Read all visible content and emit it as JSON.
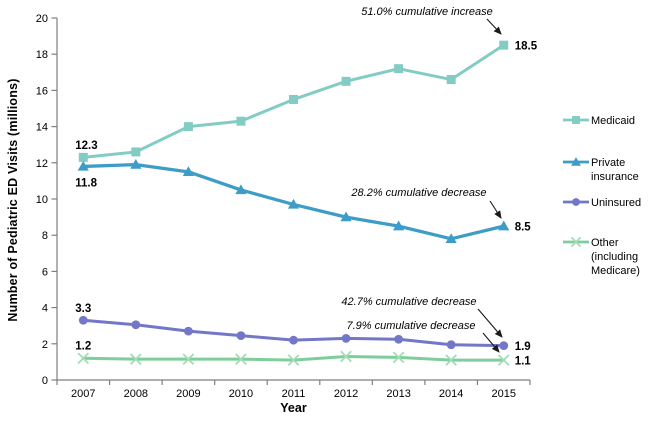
{
  "chart_data": {
    "type": "line",
    "title": "",
    "xlabel": "Year",
    "ylabel": "Number of Pediatric ED Visits (millions)",
    "categories": [
      "2007",
      "2008",
      "2009",
      "2010",
      "2011",
      "2012",
      "2013",
      "2014",
      "2015"
    ],
    "ylim": [
      0,
      20
    ],
    "yticks": [
      0,
      2,
      4,
      6,
      8,
      10,
      12,
      14,
      16,
      18,
      20
    ],
    "grid": false,
    "legend_position": "right",
    "axis_color": "#7F7F7F",
    "text_color": "#000000",
    "series": [
      {
        "name": "Medicaid",
        "legend_lines": [
          "Medicaid"
        ],
        "marker": "square",
        "color": "#82CCC4",
        "values": [
          12.3,
          12.6,
          14.0,
          14.3,
          15.5,
          16.5,
          17.2,
          16.6,
          18.5
        ],
        "first_label": "12.3",
        "last_label": "18.5"
      },
      {
        "name": "Private insurance",
        "legend_lines": [
          "Private",
          "insurance"
        ],
        "marker": "triangle",
        "color": "#3E9DC7",
        "values": [
          11.8,
          11.9,
          11.5,
          10.5,
          9.7,
          9.0,
          8.5,
          7.8,
          8.5
        ],
        "first_label": "11.8",
        "last_label": "8.5"
      },
      {
        "name": "Uninsured",
        "legend_lines": [
          "Uninsured"
        ],
        "marker": "circle",
        "color": "#7277C7",
        "values": [
          3.3,
          3.05,
          2.7,
          2.45,
          2.2,
          2.3,
          2.25,
          1.95,
          1.9
        ],
        "first_label": "3.3",
        "last_label": "1.9"
      },
      {
        "name": "Other (including Medicare)",
        "legend_lines": [
          "Other",
          "(including",
          "Medicare)"
        ],
        "marker": "x",
        "color": "#7DCE9B",
        "marker_color": "#A3DCB6",
        "values": [
          1.2,
          1.15,
          1.15,
          1.15,
          1.1,
          1.3,
          1.25,
          1.1,
          1.1
        ],
        "first_label": "1.2",
        "last_label": "1.1"
      }
    ],
    "annotations": [
      {
        "text": "51.0% cumulative increase",
        "target_series": "Medicaid",
        "target_category": "2015"
      },
      {
        "text": "28.2% cumulative decrease",
        "target_series": "Private insurance",
        "target_category": "2015"
      },
      {
        "text": "42.7% cumulative decrease",
        "target_series": "Uninsured",
        "target_category": "2015"
      },
      {
        "text": "7.9% cumulative decrease",
        "target_series": "Other (including Medicare)",
        "target_category": "2015"
      }
    ]
  }
}
